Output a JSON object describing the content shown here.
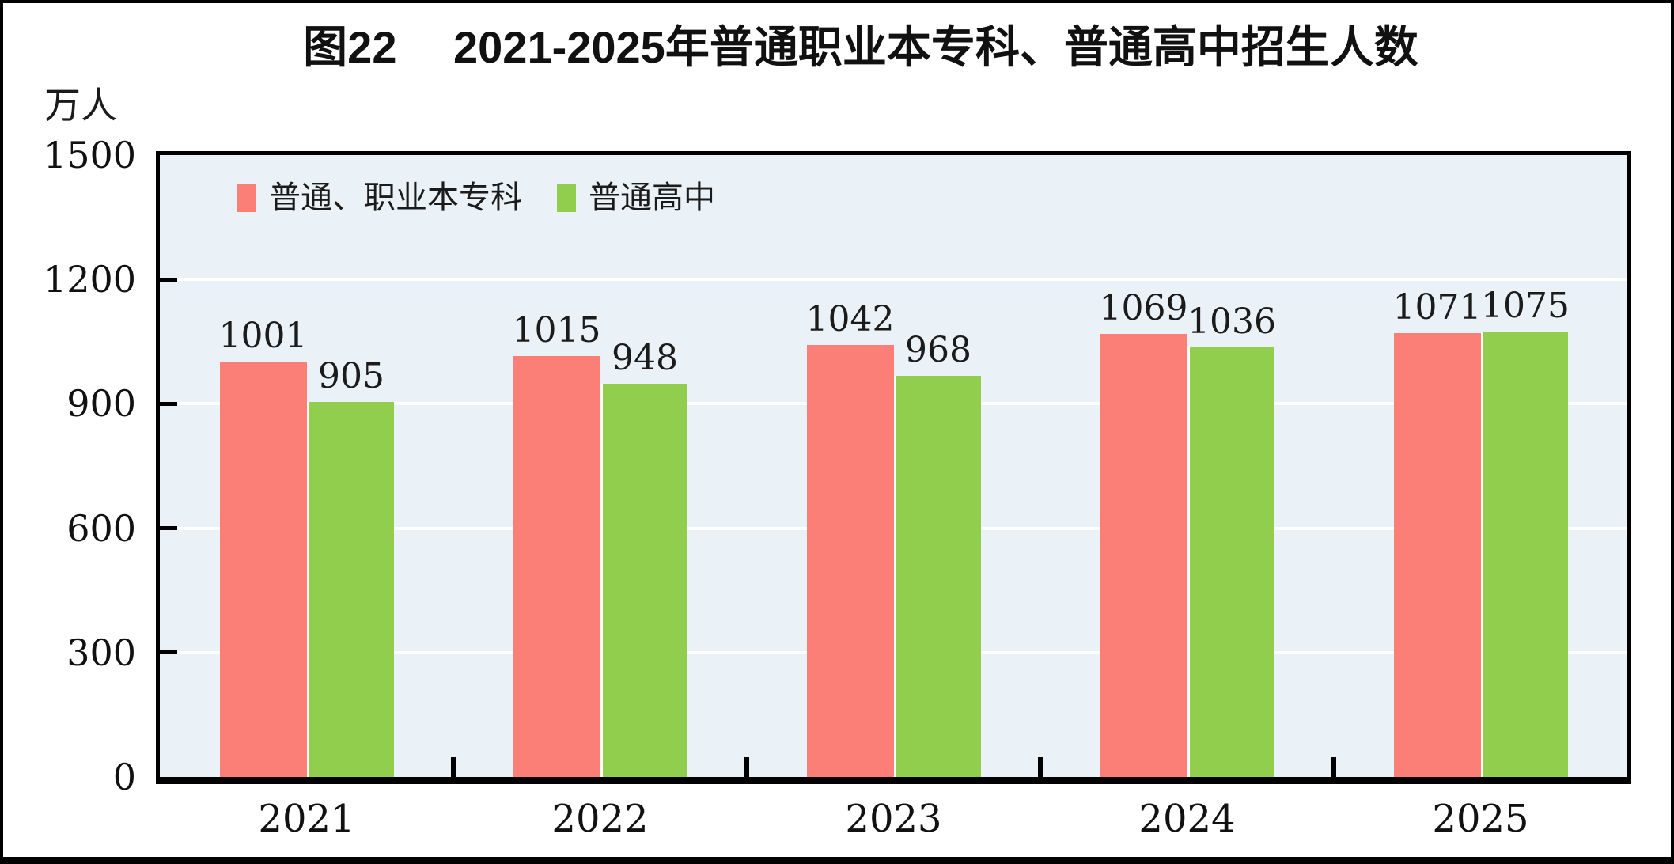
{
  "title": "图22　 2021-2025年普通职业本专科、普通高中招生人数",
  "y_axis": {
    "unit": "万人"
  },
  "legend": [
    {
      "label": "普通、职业本专科",
      "color": "#fb7e77"
    },
    {
      "label": "普通高中",
      "color": "#92ce4e"
    }
  ],
  "colors": {
    "plot_background": "#eaf2f7",
    "gridline": "#ffffff",
    "frame": "#000000",
    "series_red": "#fb7e77",
    "series_green": "#92ce4e"
  },
  "chart_data": {
    "type": "bar",
    "title": "图22 2021-2025年普通职业本专科、普通高中招生人数",
    "categories": [
      "2021",
      "2022",
      "2023",
      "2024",
      "2025"
    ],
    "series": [
      {
        "name": "普通、职业本专科",
        "color": "#fb7e77",
        "values": [
          1001,
          1015,
          1042,
          1069,
          1071
        ]
      },
      {
        "name": "普通高中",
        "color": "#92ce4e",
        "values": [
          905,
          948,
          968,
          1036,
          1075
        ]
      }
    ],
    "xlabel": "",
    "ylabel": "万人",
    "ylim": [
      0,
      1500
    ],
    "yticks": [
      0,
      300,
      600,
      900,
      1200,
      1500
    ],
    "grid": true,
    "gridline_color": "#ffffff",
    "legend_position": "top-left-inside",
    "bar_value_labels": true
  }
}
